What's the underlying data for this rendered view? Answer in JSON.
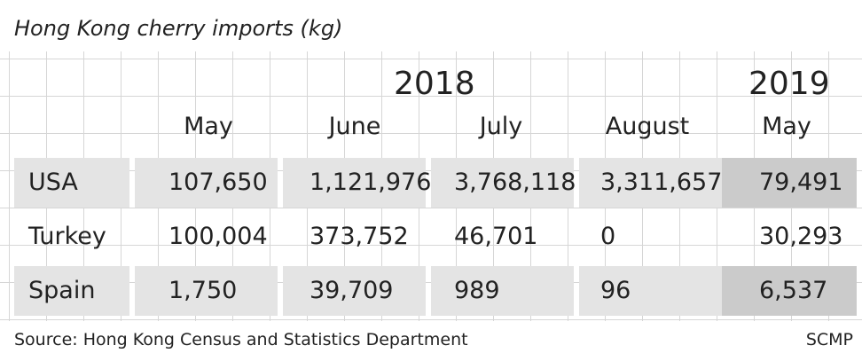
{
  "title": "Hong Kong cherry imports (kg)",
  "source": "Source: Hong Kong Census and Statistics Department",
  "credit": "SCMP",
  "chart_data": {
    "type": "table",
    "title": "Hong Kong cherry imports (kg)",
    "year_groups": [
      {
        "label": "2018",
        "months": [
          "May",
          "June",
          "July",
          "August"
        ]
      },
      {
        "label": "2019",
        "months": [
          "May"
        ]
      }
    ],
    "columns": [
      "May",
      "June",
      "July",
      "August",
      "May"
    ],
    "rows": [
      {
        "label": "USA",
        "values": [
          "107,650",
          "1,121,976",
          "3,768,118",
          "3,311,657",
          "79,491"
        ]
      },
      {
        "label": "Turkey",
        "values": [
          "100,004",
          "373,752",
          "46,701",
          "0",
          "30,293"
        ]
      },
      {
        "label": "Spain",
        "values": [
          "1,750",
          "39,709",
          "989",
          "96",
          "6,537"
        ]
      }
    ],
    "numeric_rows": [
      {
        "label": "USA",
        "values": [
          107650,
          1121976,
          3768118,
          3311657,
          79491
        ]
      },
      {
        "label": "Turkey",
        "values": [
          100004,
          373752,
          46701,
          0,
          30293
        ]
      },
      {
        "label": "Spain",
        "values": [
          1750,
          39709,
          989,
          96,
          6537
        ]
      }
    ],
    "highlight_color": "#cbcbcb",
    "row_shade_color": "#e4e4e4"
  }
}
